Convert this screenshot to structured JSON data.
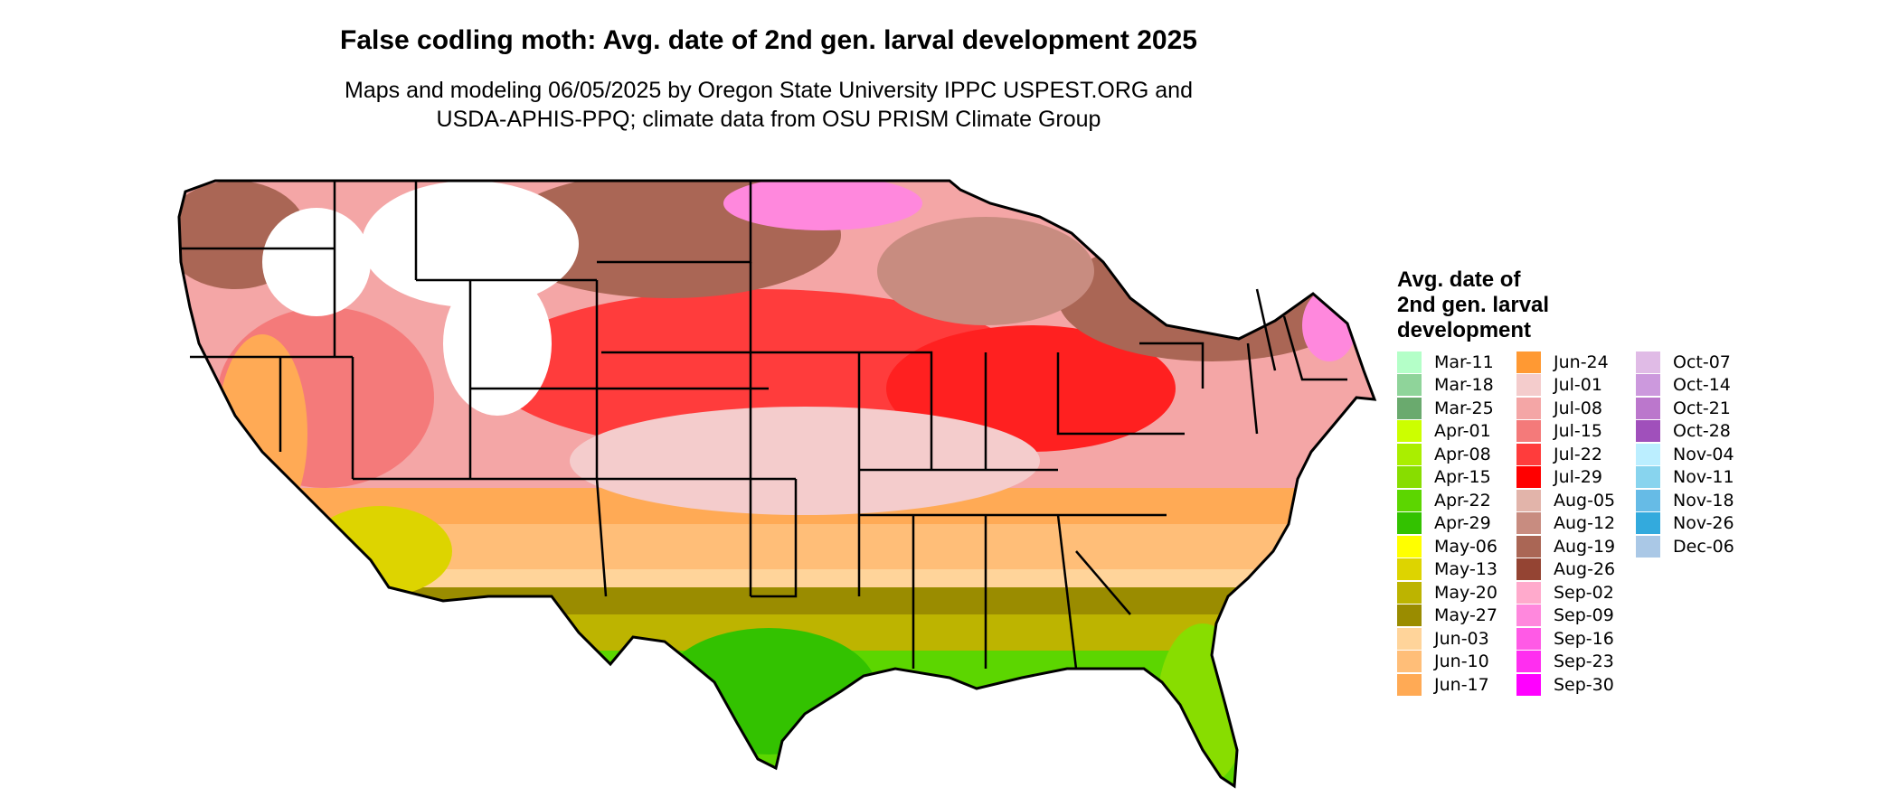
{
  "title": "False codling moth: Avg. date of 2nd gen. larval development 2025",
  "subtitle": [
    "Maps and modeling 06/05/2025 by Oregon State University IPPC USPEST.ORG and",
    "USDA-APHIS-PPQ; climate data from OSU PRISM Climate Group"
  ],
  "legend": {
    "title": [
      "Avg. date of",
      "2nd gen. larval",
      "development"
    ],
    "items": [
      {
        "label": "Mar-11",
        "color": "#b4ffc8"
      },
      {
        "label": "Mar-18",
        "color": "#8fd49a"
      },
      {
        "label": "Mar-25",
        "color": "#6aaa6e"
      },
      {
        "label": "Apr-01",
        "color": "#ccff00"
      },
      {
        "label": "Apr-08",
        "color": "#aaee00"
      },
      {
        "label": "Apr-15",
        "color": "#88dd00"
      },
      {
        "label": "Apr-22",
        "color": "#5cd600"
      },
      {
        "label": "Apr-29",
        "color": "#33c200"
      },
      {
        "label": "May-06",
        "color": "#ffff00"
      },
      {
        "label": "May-13",
        "color": "#ddd400"
      },
      {
        "label": "May-20",
        "color": "#bdb400"
      },
      {
        "label": "May-27",
        "color": "#9a8c00"
      },
      {
        "label": "Jun-03",
        "color": "#ffd49a"
      },
      {
        "label": "Jun-10",
        "color": "#ffbe78"
      },
      {
        "label": "Jun-17",
        "color": "#ffaa55"
      },
      {
        "label": "Jun-24",
        "color": "#ff9933"
      },
      {
        "label": "Jul-01",
        "color": "#f4cccc"
      },
      {
        "label": "Jul-08",
        "color": "#f4a6a6"
      },
      {
        "label": "Jul-15",
        "color": "#f47a7a"
      },
      {
        "label": "Jul-22",
        "color": "#ff3c3c"
      },
      {
        "label": "Jul-29",
        "color": "#ff0000"
      },
      {
        "label": "Aug-05",
        "color": "#e2b4aa"
      },
      {
        "label": "Aug-12",
        "color": "#c88c80"
      },
      {
        "label": "Aug-19",
        "color": "#aa6655"
      },
      {
        "label": "Aug-26",
        "color": "#944433"
      },
      {
        "label": "Sep-02",
        "color": "#ffaacc"
      },
      {
        "label": "Sep-09",
        "color": "#ff88dd"
      },
      {
        "label": "Sep-16",
        "color": "#ff5ae6"
      },
      {
        "label": "Sep-23",
        "color": "#ff2ef0"
      },
      {
        "label": "Sep-30",
        "color": "#ff00ff"
      },
      {
        "label": "Oct-07",
        "color": "#e0bbe6"
      },
      {
        "label": "Oct-14",
        "color": "#cc99dd"
      },
      {
        "label": "Oct-21",
        "color": "#bb77cc"
      },
      {
        "label": "Oct-28",
        "color": "#a050bb"
      },
      {
        "label": "Nov-04",
        "color": "#bbeeff"
      },
      {
        "label": "Nov-11",
        "color": "#88d4ee"
      },
      {
        "label": "Nov-18",
        "color": "#66bbe6"
      },
      {
        "label": "Nov-26",
        "color": "#33aadd"
      },
      {
        "label": "Dec-06",
        "color": "#aac8e6"
      }
    ]
  }
}
